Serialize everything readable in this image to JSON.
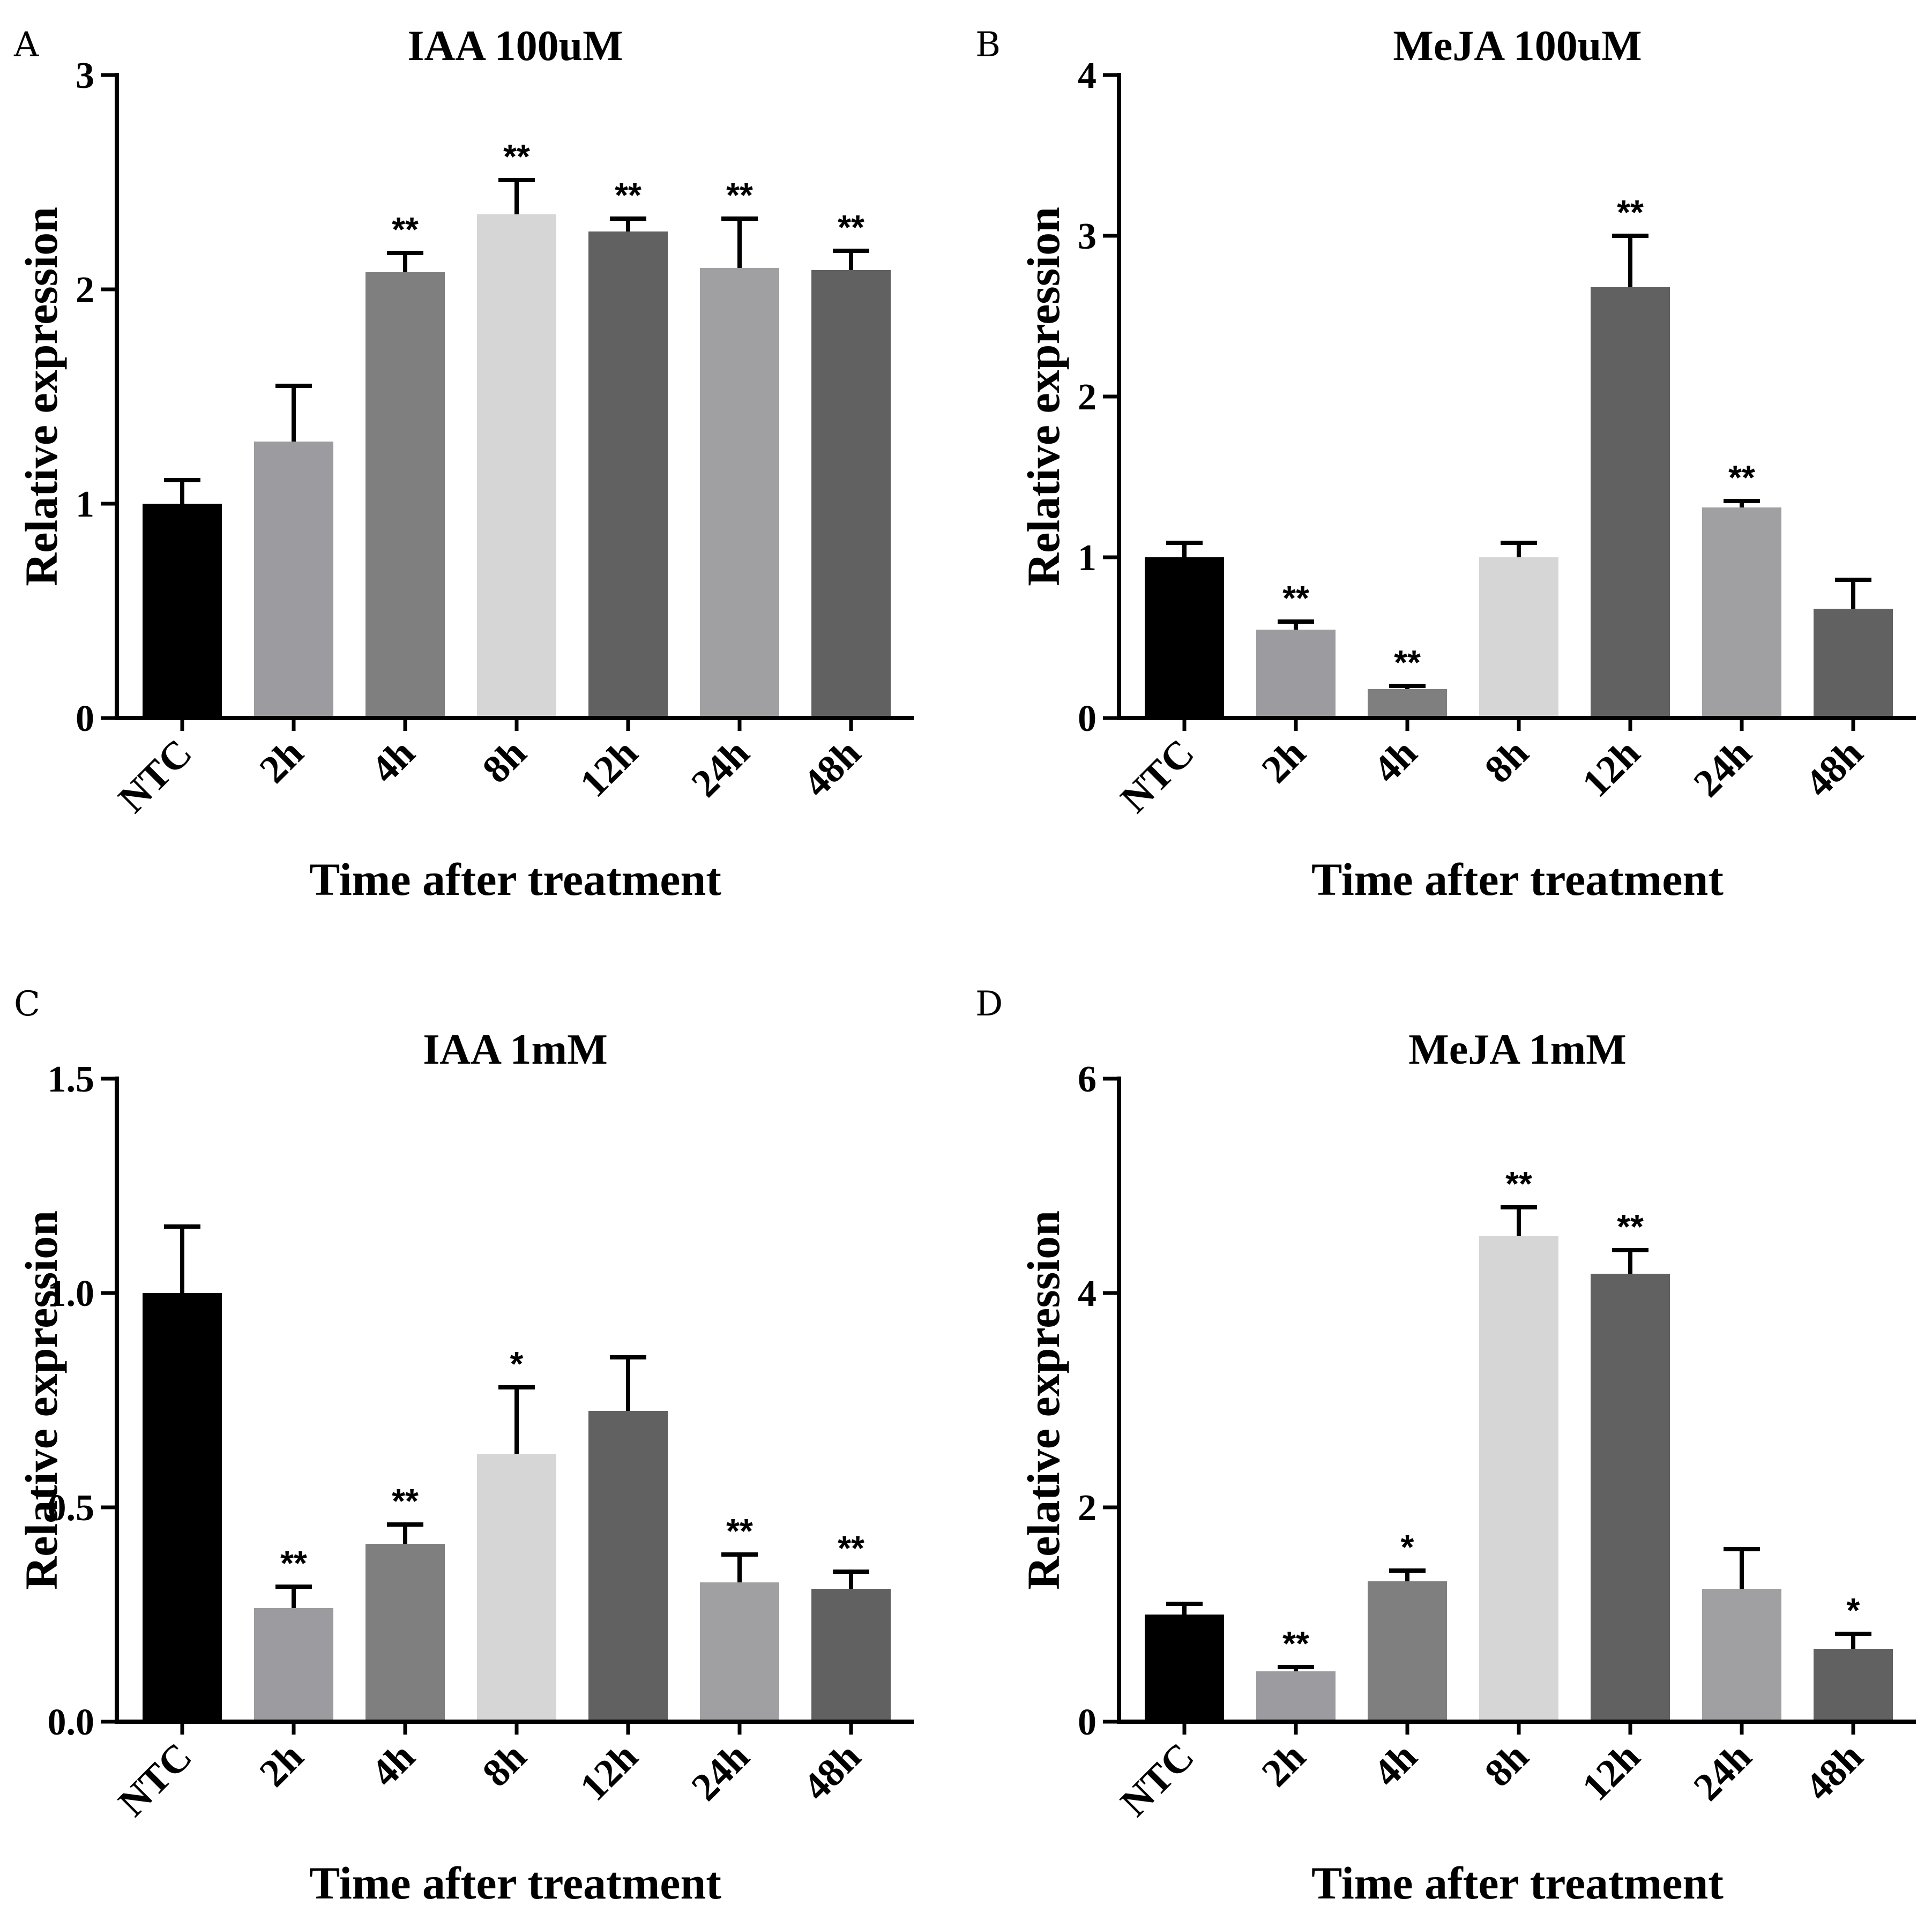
{
  "figure": {
    "panels": [
      {
        "letter": "A"
      },
      {
        "letter": "B"
      },
      {
        "letter": "C"
      },
      {
        "letter": "D"
      }
    ]
  },
  "colors": {
    "NTC": "#000000",
    "2h": "#9c9b9f",
    "4h": "#7f7f7f",
    "8h": "#d6d6d6",
    "12h": "#616161",
    "24h": "#a0a0a3",
    "48h": "#616161"
  },
  "chart_data": [
    {
      "type": "bar",
      "title": "IAA 100uM",
      "xlabel": "Time after treatment",
      "ylabel": "Relative expression",
      "categories": [
        "NTC",
        "2h",
        "4h",
        "8h",
        "12h",
        "24h",
        "48h"
      ],
      "values": [
        1.0,
        1.29,
        2.08,
        2.35,
        2.27,
        2.1,
        2.09
      ],
      "errors": [
        0.11,
        0.26,
        0.09,
        0.16,
        0.06,
        0.23,
        0.09
      ],
      "significance": [
        "",
        "",
        "**",
        "**",
        "**",
        "**",
        "**"
      ],
      "ylim": [
        0,
        3
      ],
      "yticks": [
        "0",
        "1",
        "2",
        "3"
      ],
      "grid": false,
      "legend": "none"
    },
    {
      "type": "bar",
      "title": "MeJA 100uM",
      "xlabel": "Time after treatment",
      "ylabel": "Relative expression",
      "categories": [
        "NTC",
        "2h",
        "4h",
        "8h",
        "12h",
        "24h",
        "48h"
      ],
      "values": [
        1.0,
        0.55,
        0.18,
        1.0,
        2.68,
        1.31,
        0.68
      ],
      "errors": [
        0.09,
        0.05,
        0.02,
        0.09,
        0.32,
        0.04,
        0.18
      ],
      "significance": [
        "",
        "**",
        "**",
        "",
        "**",
        "**",
        ""
      ],
      "ylim": [
        0,
        4
      ],
      "yticks": [
        "0",
        "1",
        "2",
        "3",
        "4"
      ],
      "grid": false,
      "legend": "none"
    },
    {
      "type": "bar",
      "title": "IAA 1mM",
      "xlabel": "Time after treatment",
      "ylabel": "Relative expression",
      "categories": [
        "NTC",
        "2h",
        "4h",
        "8h",
        "12h",
        "24h",
        "48h"
      ],
      "values": [
        1.0,
        0.265,
        0.415,
        0.625,
        0.725,
        0.325,
        0.31
      ],
      "errors": [
        0.155,
        0.05,
        0.045,
        0.155,
        0.125,
        0.065,
        0.04
      ],
      "significance": [
        "",
        "**",
        "**",
        "*",
        "",
        "**",
        "**"
      ],
      "ylim": [
        0,
        1.5
      ],
      "yticks": [
        "0.0",
        "0.5",
        "1.0",
        "1.5"
      ],
      "grid": false,
      "legend": "none"
    },
    {
      "type": "bar",
      "title": "MeJA 1mM",
      "xlabel": "Time after treatment",
      "ylabel": "Relative expression",
      "categories": [
        "NTC",
        "2h",
        "4h",
        "8h",
        "12h",
        "24h",
        "48h"
      ],
      "values": [
        1.0,
        0.47,
        1.31,
        4.53,
        4.18,
        1.24,
        0.68
      ],
      "errors": [
        0.1,
        0.04,
        0.1,
        0.27,
        0.22,
        0.37,
        0.14
      ],
      "significance": [
        "",
        "**",
        "*",
        "**",
        "**",
        "",
        "*"
      ],
      "ylim": [
        0,
        6
      ],
      "yticks": [
        "0",
        "2",
        "4",
        "6"
      ],
      "grid": false,
      "legend": "none"
    }
  ]
}
